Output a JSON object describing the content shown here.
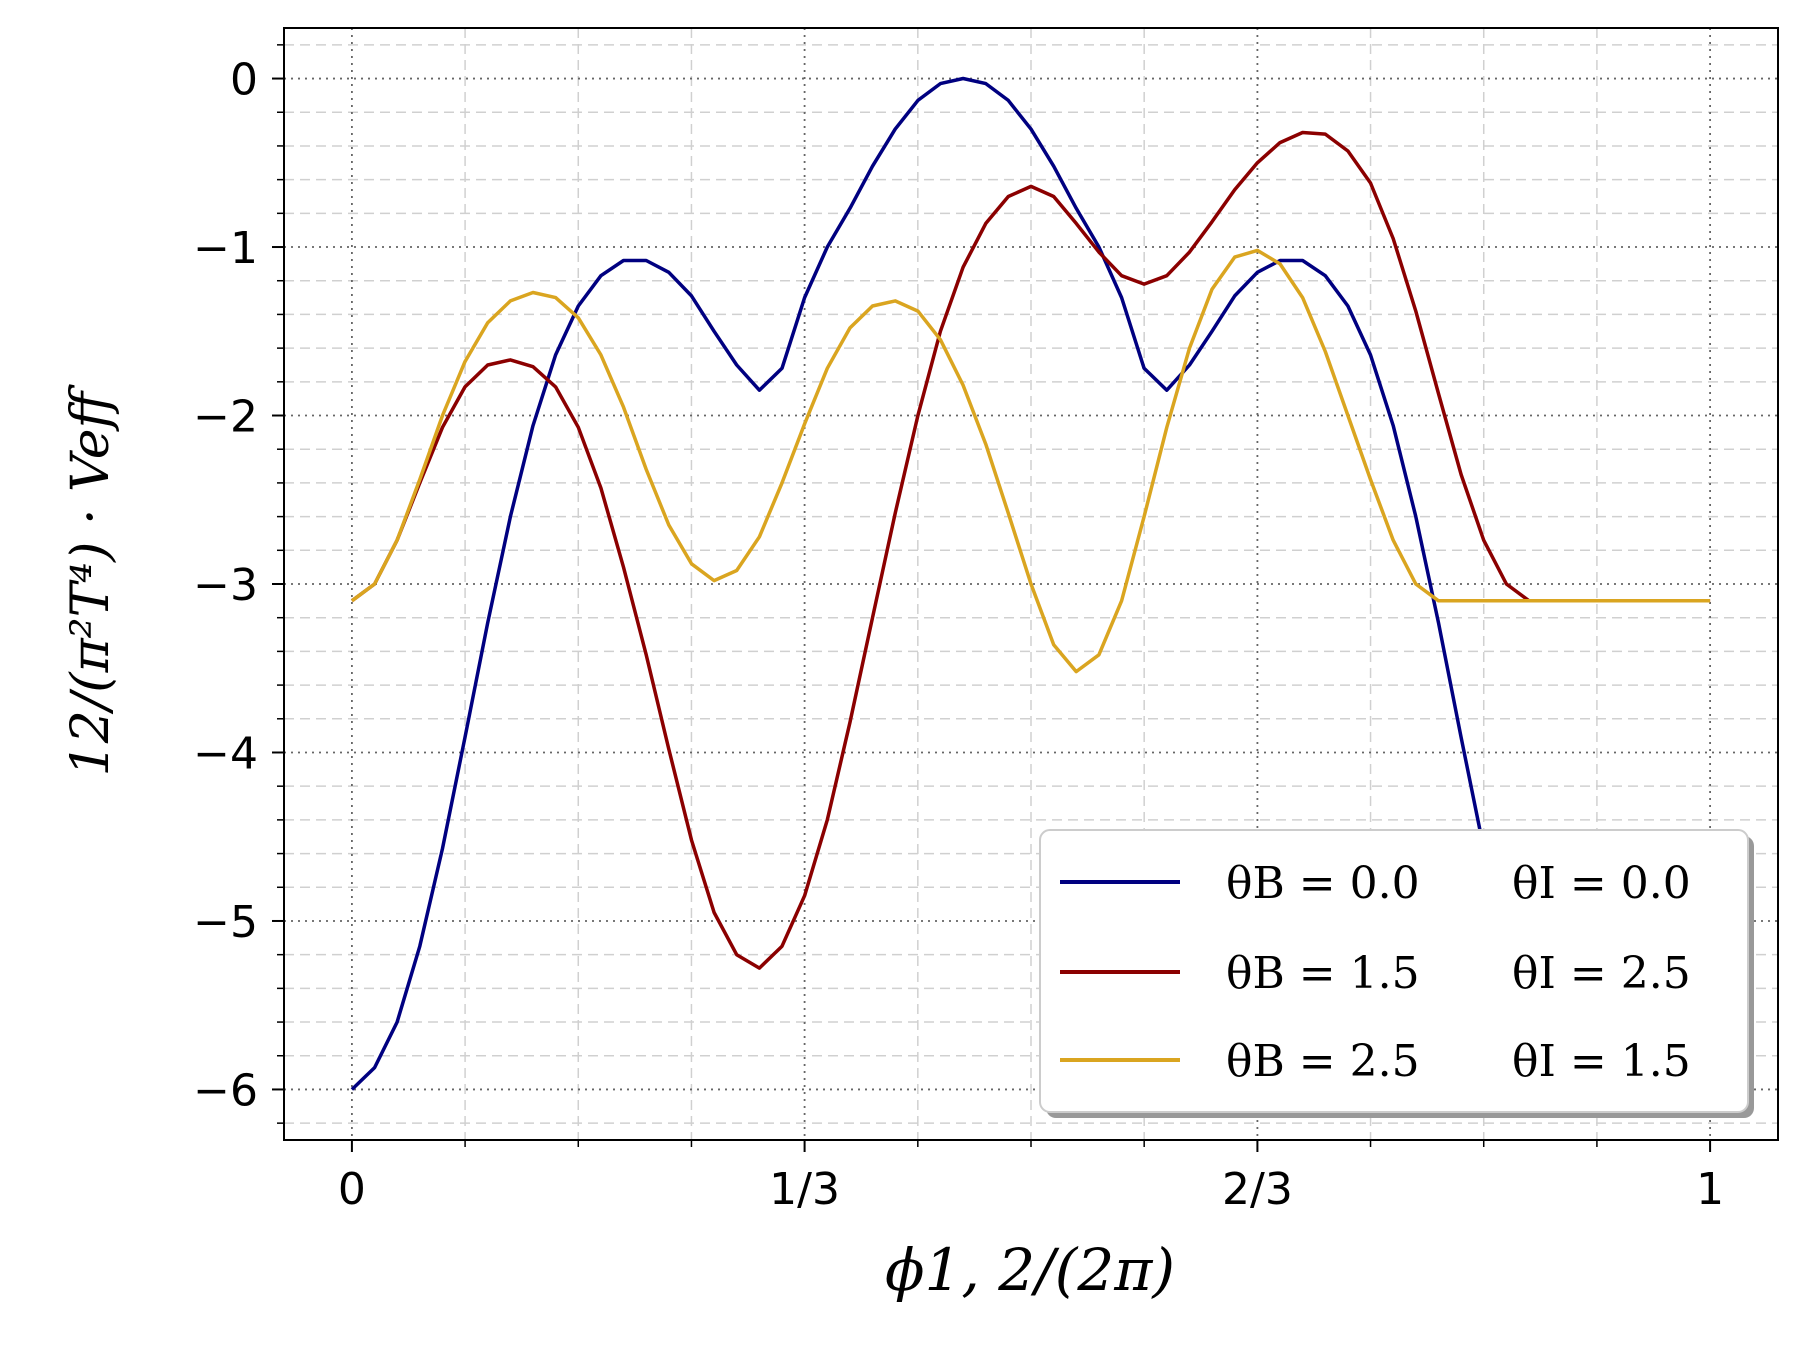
{
  "chart_data": {
    "type": "line",
    "xlabel": "ϕ1, 2/(2π)",
    "ylabel": "12/(π²T⁴) · Veff",
    "xlim": [
      -0.05,
      1.05
    ],
    "ylim": [
      -6.3,
      0.3
    ],
    "x_ticks": [
      {
        "value": 0,
        "label": "0"
      },
      {
        "value": 0.3333,
        "label": "1/3"
      },
      {
        "value": 0.6667,
        "label": "2/3"
      },
      {
        "value": 1,
        "label": "1"
      }
    ],
    "y_ticks": [
      {
        "value": 0,
        "label": "0"
      },
      {
        "value": -1,
        "label": "−1"
      },
      {
        "value": -2,
        "label": "−2"
      },
      {
        "value": -3,
        "label": "−3"
      },
      {
        "value": -4,
        "label": "−4"
      },
      {
        "value": -5,
        "label": "−5"
      },
      {
        "value": -6,
        "label": "−6"
      }
    ],
    "grid": {
      "major": "dotted",
      "minor": "dashed"
    },
    "legend": {
      "placement": "lower-right",
      "shadow": true
    },
    "series": [
      {
        "name": "θB = 0.0 θI = 0.0",
        "legend_parts": {
          "theta_B": "θB = 0.0",
          "theta_I": "θI = 0.0"
        },
        "color": "#000080",
        "x": [
          0,
          0.0167,
          0.0333,
          0.05,
          0.0667,
          0.0833,
          0.1,
          0.1167,
          0.1333,
          0.15,
          0.1667,
          0.1833,
          0.2,
          0.2167,
          0.2333,
          0.25,
          0.2667,
          0.2833,
          0.3,
          0.3167,
          0.3333,
          0.35,
          0.3667,
          0.3833,
          0.4,
          0.4167,
          0.4333,
          0.45,
          0.4667,
          0.4833,
          0.5,
          0.5167,
          0.5333,
          0.55,
          0.5667,
          0.5833,
          0.6,
          0.6167,
          0.6333,
          0.65,
          0.6667,
          0.6833,
          0.7,
          0.7167,
          0.7333,
          0.75,
          0.7667,
          0.7833,
          0.8,
          0.8167,
          0.8333
        ],
        "y": [
          -6.0,
          -5.87,
          -5.6,
          -5.15,
          -4.57,
          -3.91,
          -3.23,
          -2.6,
          -2.06,
          -1.64,
          -1.35,
          -1.17,
          -1.08,
          -1.08,
          -1.15,
          -1.29,
          -1.5,
          -1.7,
          -1.85,
          -1.72,
          -1.3,
          -1.0,
          -0.77,
          -0.52,
          -0.3,
          -0.13,
          -0.03,
          0.0,
          -0.03,
          -0.13,
          -0.3,
          -0.52,
          -0.77,
          -1.0,
          -1.3,
          -1.72,
          -1.85,
          -1.7,
          -1.5,
          -1.29,
          -1.15,
          -1.08,
          -1.08,
          -1.17,
          -1.35,
          -1.64,
          -2.06,
          -2.6,
          -3.23,
          -3.91,
          -4.57
        ]
      },
      {
        "name": "θB = 1.5 θI = 2.5",
        "legend_parts": {
          "theta_B": "θB = 1.5",
          "theta_I": "θI = 2.5"
        },
        "color": "#8b0000",
        "x": [
          0,
          0.0167,
          0.0333,
          0.05,
          0.0667,
          0.0833,
          0.1,
          0.1167,
          0.1333,
          0.15,
          0.1667,
          0.1833,
          0.2,
          0.2167,
          0.2333,
          0.25,
          0.2667,
          0.2833,
          0.3,
          0.3167,
          0.3333,
          0.35,
          0.3667,
          0.3833,
          0.4,
          0.4167,
          0.4333,
          0.45,
          0.4667,
          0.4833,
          0.5,
          0.5167,
          0.5333,
          0.55,
          0.5667,
          0.5833,
          0.6,
          0.6167,
          0.6333,
          0.65,
          0.6667,
          0.6833,
          0.7,
          0.7167,
          0.7333,
          0.75,
          0.7667,
          0.7833,
          0.8,
          0.8167,
          0.8333,
          0.85,
          0.8667,
          0.8833,
          0.9,
          0.9167,
          0.9333,
          0.95,
          0.9667,
          0.9833,
          1.0
        ],
        "y": [
          -3.1,
          -3.0,
          -2.74,
          -2.4,
          -2.07,
          -1.83,
          -1.7,
          -1.67,
          -1.71,
          -1.83,
          -2.07,
          -2.43,
          -2.9,
          -3.42,
          -3.98,
          -4.52,
          -4.95,
          -5.2,
          -5.28,
          -5.15,
          -4.85,
          -4.4,
          -3.82,
          -3.2,
          -2.58,
          -2.0,
          -1.5,
          -1.12,
          -0.86,
          -0.7,
          -0.64,
          -0.7,
          -0.86,
          -1.03,
          -1.17,
          -1.22,
          -1.17,
          -1.03,
          -0.85,
          -0.66,
          -0.5,
          -0.38,
          -0.32,
          -0.33,
          -0.43,
          -0.62,
          -0.95,
          -1.38,
          -1.87,
          -2.35,
          -2.74,
          -3.0,
          -3.1,
          -3.1,
          -3.1,
          -3.1,
          -3.1,
          -3.1,
          -3.1,
          -3.1,
          -3.1
        ]
      },
      {
        "name": "θB = 2.5 θI = 1.5",
        "legend_parts": {
          "theta_B": "θB = 2.5",
          "theta_I": "θI = 1.5"
        },
        "color": "#daa520",
        "x": [
          0,
          0.0167,
          0.0333,
          0.05,
          0.0667,
          0.0833,
          0.1,
          0.1167,
          0.1333,
          0.15,
          0.1667,
          0.1833,
          0.2,
          0.2167,
          0.2333,
          0.25,
          0.2667,
          0.2833,
          0.3,
          0.3167,
          0.3333,
          0.35,
          0.3667,
          0.3833,
          0.4,
          0.4167,
          0.4333,
          0.45,
          0.4667,
          0.4833,
          0.5,
          0.5167,
          0.5333,
          0.55,
          0.5667,
          0.5833,
          0.6,
          0.6167,
          0.6333,
          0.65,
          0.6667,
          0.6833,
          0.7,
          0.7167,
          0.7333,
          0.75,
          0.7667,
          0.7833,
          0.8,
          0.8167,
          0.8333,
          0.85,
          0.8667,
          0.8833,
          0.9,
          0.9167,
          0.9333,
          0.95,
          0.9667,
          0.9833,
          1.0
        ],
        "y": [
          -3.1,
          -3.0,
          -2.74,
          -2.38,
          -2.0,
          -1.68,
          -1.45,
          -1.32,
          -1.27,
          -1.3,
          -1.42,
          -1.64,
          -1.95,
          -2.32,
          -2.65,
          -2.88,
          -2.98,
          -2.92,
          -2.72,
          -2.4,
          -2.05,
          -1.72,
          -1.48,
          -1.35,
          -1.32,
          -1.38,
          -1.55,
          -1.82,
          -2.17,
          -2.58,
          -3.0,
          -3.36,
          -3.52,
          -3.42,
          -3.1,
          -2.6,
          -2.07,
          -1.6,
          -1.25,
          -1.06,
          -1.02,
          -1.1,
          -1.3,
          -1.62,
          -2.0,
          -2.38,
          -2.74,
          -3.0,
          -3.1,
          -3.1,
          -3.1,
          -3.1,
          -3.1,
          -3.1,
          -3.1,
          -3.1,
          -3.1,
          -3.1,
          -3.1,
          -3.1,
          -3.1
        ]
      }
    ]
  }
}
